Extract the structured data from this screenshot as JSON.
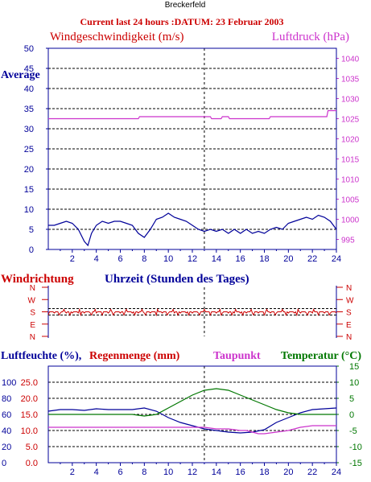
{
  "header": {
    "station": "Breckerfeld",
    "subtitle": "Current last 24 hours :DATUM: 23 Februar 2003"
  },
  "colors": {
    "wind": "#000099",
    "pressure": "#cc33cc",
    "direction": "#cc0000",
    "humidity": "#000099",
    "rain": "#cc0000",
    "dewpoint": "#cc33cc",
    "temperature": "#007700",
    "label_red": "#cc0000",
    "label_blue": "#000099",
    "label_magenta": "#cc33cc",
    "label_green": "#007700"
  },
  "chart_data": [
    {
      "type": "line",
      "left_axis_label": "Windgeschwindigkeit (m/s)",
      "right_axis_label": "Luftdruck (hPa)",
      "left_corner_label": "Average",
      "xlim": [
        0,
        24
      ],
      "xticks": [
        2,
        4,
        6,
        8,
        10,
        12,
        14,
        16,
        18,
        20,
        22,
        24
      ],
      "ylim_left": [
        0,
        50
      ],
      "yticks_left": [
        0,
        5,
        10,
        15,
        20,
        25,
        30,
        35,
        40,
        45,
        50
      ],
      "ylim_right": [
        992.5,
        1042.5
      ],
      "yticks_right": [
        995,
        1000,
        1005,
        1010,
        1015,
        1020,
        1025,
        1030,
        1035,
        1040
      ],
      "grid": true,
      "series": [
        {
          "axis": "left",
          "x": [
            0,
            0.5,
            1,
            1.5,
            2,
            2.5,
            3,
            3.3,
            3.6,
            4,
            4.5,
            5,
            5.5,
            6,
            6.5,
            7,
            7.5,
            8,
            8.5,
            9,
            9.5,
            10,
            10.5,
            11,
            11.5,
            12,
            12.5,
            13,
            13.5,
            14,
            14.5,
            15,
            15.5,
            16,
            16.5,
            17,
            17.5,
            18,
            18.5,
            19,
            19.5,
            20,
            20.5,
            21,
            21.5,
            22,
            22.5,
            23,
            23.5,
            24
          ],
          "values": [
            6,
            6,
            6.5,
            7,
            6.5,
            5,
            2,
            1,
            4,
            6,
            7,
            6.5,
            7,
            7,
            6.5,
            6,
            4,
            3,
            5,
            7.5,
            8,
            9,
            8,
            7.5,
            7,
            6,
            5,
            4.5,
            5,
            4.5,
            5,
            4,
            5,
            4,
            5,
            4,
            4.5,
            4,
            5,
            5.5,
            5,
            6.5,
            7,
            7.5,
            8,
            7.5,
            8.5,
            8,
            7,
            5
          ]
        },
        {
          "axis": "right",
          "x": [
            0,
            7.5,
            7.6,
            13.5,
            13.6,
            14.4,
            14.5,
            15,
            15.1,
            18.4,
            18.5,
            23.2,
            23.3,
            24
          ],
          "values": [
            1025,
            1025,
            1025.5,
            1025.5,
            1025,
            1025,
            1025.5,
            1025.5,
            1025,
            1025,
            1025.5,
            1025.5,
            1027,
            1027
          ]
        }
      ]
    },
    {
      "type": "line",
      "left_axis_label": "Windrichtung",
      "title": "Uhrzeit (Stunden des Tages)",
      "yticks": [
        "N",
        "W",
        "S",
        "E",
        "N"
      ],
      "series": [
        {
          "x": [
            0,
            24
          ],
          "values": [
            "S",
            "S"
          ]
        }
      ]
    },
    {
      "type": "line",
      "legend": [
        "Luftfeuchte (%),",
        "Regenmenge (mm)",
        "Taupunkt",
        "Temperatur (°C)"
      ],
      "xlim": [
        0,
        24
      ],
      "xticks": [
        2,
        4,
        6,
        8,
        10,
        12,
        14,
        16,
        18,
        20,
        22,
        24
      ],
      "yticks_humidity": [
        0,
        20,
        40,
        60,
        80,
        100
      ],
      "yticks_rain": [
        "0.0",
        "5.0",
        "10.0",
        "15.0",
        "20.0",
        "25.0"
      ],
      "ylim_temperature": [
        -15,
        15
      ],
      "yticks_temperature": [
        -15,
        -10,
        -5,
        0,
        5,
        10,
        15
      ],
      "grid": true,
      "series": [
        {
          "name": "Luftfeuchte (%)",
          "axis": "humidity",
          "x": [
            0,
            1,
            2,
            3,
            4,
            5,
            6,
            7,
            8,
            9,
            10,
            11,
            12,
            13,
            14,
            15,
            16,
            17,
            18,
            19,
            20,
            21,
            22,
            23,
            24
          ],
          "values": [
            64,
            66,
            66,
            65,
            67,
            66,
            66,
            66,
            68,
            64,
            56,
            50,
            46,
            42,
            40,
            38,
            37,
            38,
            41,
            50,
            56,
            62,
            66,
            67,
            68
          ]
        },
        {
          "name": "Taupunkt",
          "axis": "temperature",
          "x": [
            0,
            2,
            4,
            6,
            8,
            10,
            12,
            13,
            14,
            15,
            16,
            16.5,
            17,
            17.5,
            18,
            19,
            20,
            21,
            22,
            23,
            24
          ],
          "values": [
            -4,
            -4,
            -4,
            -4,
            -4,
            -4,
            -4,
            -4,
            -4.5,
            -4.5,
            -5,
            -5,
            -5.5,
            -6,
            -6,
            -5.5,
            -5,
            -4,
            -3.5,
            -3.5,
            -3.5
          ]
        },
        {
          "name": "Temperatur",
          "axis": "temperature",
          "x": [
            0,
            1,
            2,
            3,
            4,
            5,
            6,
            7,
            8,
            9,
            10,
            11,
            12,
            13,
            14,
            15,
            16,
            17,
            18,
            19,
            20,
            21,
            22,
            23,
            24
          ],
          "values": [
            0,
            0,
            0,
            0,
            0,
            0,
            0,
            0,
            -0.5,
            0,
            2,
            4,
            6,
            7.5,
            8,
            7.5,
            6,
            4.5,
            3,
            1.5,
            0.5,
            0,
            0,
            0,
            0
          ]
        }
      ]
    }
  ]
}
